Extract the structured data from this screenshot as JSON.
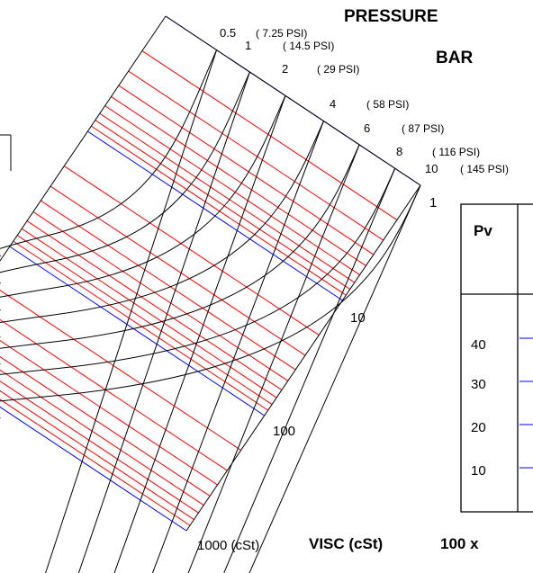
{
  "headings": {
    "pressure": "PRESSURE",
    "bar": "BAR",
    "visc_axis": "VISC (cSt)",
    "factor": "100 x"
  },
  "pressure_scale": [
    {
      "bar": "0.5",
      "psi": "( 7.25 PSI)"
    },
    {
      "bar": "1",
      "psi": "( 14.5 PSI)"
    },
    {
      "bar": "2",
      "psi": "( 29 PSI)"
    },
    {
      "bar": "4",
      "psi": "( 58 PSI)"
    },
    {
      "bar": "6",
      "psi": "( 87 PSI)"
    },
    {
      "bar": "8",
      "psi": "( 116 PSI)"
    },
    {
      "bar": "10",
      "psi": "( 145 PSI)"
    }
  ],
  "viscosity_scale": [
    "1",
    "10",
    "100",
    "1000 (cSt)"
  ],
  "pv_table": {
    "header": "Pv",
    "rows": [
      "40",
      "30",
      "20",
      "10"
    ]
  },
  "colors": {
    "minor_grid": "#ff0000",
    "decade_grid": "#0000ff",
    "curves": "#000000",
    "frame": "#000000",
    "background": "#ffffff"
  }
}
